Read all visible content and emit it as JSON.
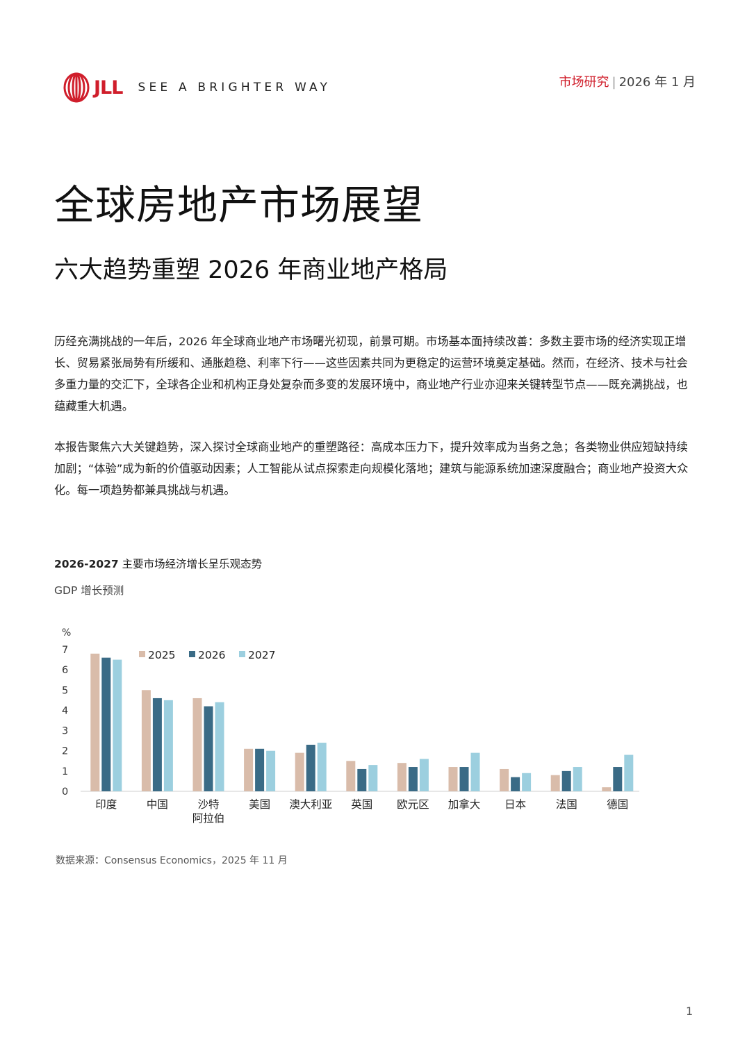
{
  "header": {
    "logo_text": "JLL",
    "tagline": "SEE A BRIGHTER WAY",
    "report_type": "市场研究",
    "report_date": "2026 年 1 月"
  },
  "title": "全球房地产市场展望",
  "subtitle": "六大趋势重塑 2026 年商业地产格局",
  "paragraphs": [
    "历经充满挑战的一年后，2026 年全球商业地产市场曙光初现，前景可期。市场基本面持续改善：多数主要市场的经济实现正增长、贸易紧张局势有所缓和、通胀趋稳、利率下行——这些因素共同为更稳定的运营环境奠定基础。然而，在经济、技术与社会多重力量的交汇下，全球各企业和机构正身处复杂而多变的发展环境中，商业地产行业亦迎来关键转型节点——既充满挑战，也蕴藏重大机遇。",
    "本报告聚焦六大关键趋势，深入探讨全球商业地产的重塑路径：高成本压力下，提升效率成为当务之急；各类物业供应短缺持续加剧；“体验”成为新的价值驱动因素；人工智能从试点探索走向规模化落地；建筑与能源系统加速深度融合；商业地产投资大众化。每一项趋势都兼具挑战与机遇。"
  ],
  "chart": {
    "title_bold": "2026-2027",
    "title_rest": " 主要市场经济增长呈乐观态势",
    "subtitle": "GDP 增长预测",
    "source": "数据来源：Consensus Economics，2025 年 11 月"
  },
  "chart_data": {
    "type": "bar",
    "ylabel": "%",
    "ylim": [
      0,
      7
    ],
    "yticks": [
      0,
      1,
      2,
      3,
      4,
      5,
      6,
      7
    ],
    "grid": false,
    "legend_position": "top-left",
    "categories": [
      [
        "印度"
      ],
      [
        "中国"
      ],
      [
        "沙特",
        "阿拉伯"
      ],
      [
        "美国"
      ],
      [
        "澳大利亚"
      ],
      [
        "英国"
      ],
      [
        "欧元区"
      ],
      [
        "加拿大"
      ],
      [
        "日本"
      ],
      [
        "法国"
      ],
      [
        "德国"
      ]
    ],
    "series": [
      {
        "name": "2025",
        "color": "#d9bcaa",
        "values": [
          6.8,
          5.0,
          4.6,
          2.1,
          1.9,
          1.5,
          1.4,
          1.2,
          1.1,
          0.8,
          0.2
        ]
      },
      {
        "name": "2026",
        "color": "#3a6b86",
        "values": [
          6.6,
          4.6,
          4.2,
          2.1,
          2.3,
          1.1,
          1.2,
          1.2,
          0.7,
          1.0,
          1.2
        ]
      },
      {
        "name": "2027",
        "color": "#9ccfdf",
        "values": [
          6.5,
          4.5,
          4.4,
          2.0,
          2.4,
          1.3,
          1.6,
          1.9,
          0.9,
          1.2,
          1.8
        ]
      }
    ]
  },
  "page_number": "1"
}
